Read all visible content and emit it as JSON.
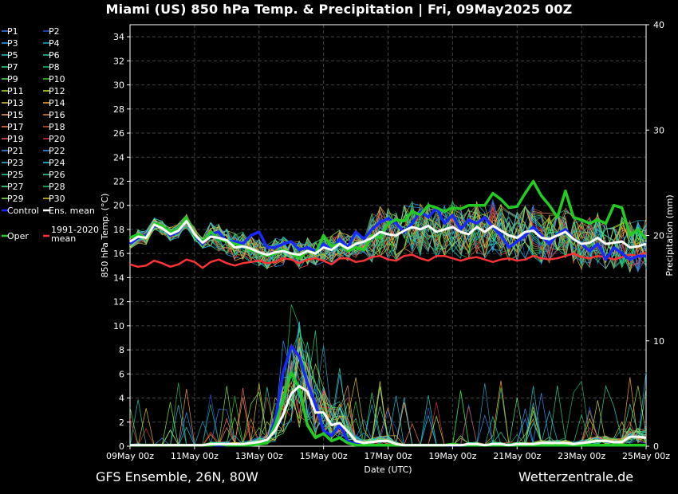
{
  "title": "Miami  (US)  850 hPa Temp. & Precipitation | Fri, 09May2025 00Z",
  "footer": {
    "left": "GFS Ensemble, 26N, 80W",
    "right": "Wetterzentrale.de"
  },
  "chart_data": {
    "type": "line",
    "title": "Miami  (US)  850 hPa Temp. & Precipitation | Fri, 09May2025 00Z",
    "xlabel": "Date (UTC)",
    "ylabel": "850 hPa Temp. (°C)",
    "y2label": "Precipitation (mm)",
    "xlim": [
      0,
      64
    ],
    "ylim": [
      0,
      35
    ],
    "y2lim": [
      0,
      40
    ],
    "x_tick_labels": [
      "09May 00z",
      "11May 00z",
      "13May 00z",
      "15May 00z",
      "17May 00z",
      "19May 00z",
      "21May 00z",
      "23May 00z",
      "25May 00z"
    ],
    "y_ticks": [
      0,
      2,
      4,
      6,
      8,
      10,
      12,
      14,
      16,
      18,
      20,
      22,
      24,
      26,
      28,
      30,
      32,
      34
    ],
    "y2_ticks": [
      0,
      10,
      20,
      30,
      40
    ],
    "grid": true,
    "legend_placement": "left",
    "colors": {
      "background": "#000000",
      "grid": "#444444",
      "oper": "#22cc22",
      "control": "#1a2aff",
      "mean": "#ffffff",
      "climate": "#ff3333"
    },
    "legend": [
      [
        "P1",
        "P2"
      ],
      [
        "P3",
        "P4"
      ],
      [
        "P5",
        "P6"
      ],
      [
        "P7",
        "P8"
      ],
      [
        "P9",
        "P10"
      ],
      [
        "P11",
        "P12"
      ],
      [
        "P13",
        "P14"
      ],
      [
        "P15",
        "P16"
      ],
      [
        "P17",
        "P18"
      ],
      [
        "P19",
        "P20"
      ],
      [
        "P21",
        "P22"
      ],
      [
        "P23",
        "P24"
      ],
      [
        "P25",
        "P26"
      ],
      [
        "P27",
        "P28"
      ],
      [
        "P29",
        "P30"
      ],
      [
        "Control",
        "Ens. mean"
      ],
      [
        "Oper",
        "1991-2020 mean"
      ]
    ],
    "member_colors": [
      "#3d7cff",
      "#2255dd",
      "#33aaff",
      "#22aacc",
      "#22cccc",
      "#22ccaa",
      "#33dd88",
      "#22bb66",
      "#55dd55",
      "#33cc33",
      "#aadd44",
      "#ccdd33",
      "#ddcc33",
      "#ffaa22",
      "#ff9966",
      "#dd8844",
      "#ff7755",
      "#cc5533",
      "#ff5555",
      "#dd3333",
      "#4488ff",
      "#3399ff",
      "#44bbdd",
      "#22ccdd",
      "#22ddaa",
      "#33ddaa",
      "#55ee88",
      "#22cc66",
      "#88ee44",
      "#ddcc22"
    ],
    "series": [
      {
        "name": "Oper",
        "axis": "temp",
        "values": [
          17.3,
          17.6,
          17.3,
          18.5,
          18.3,
          17.8,
          18.0,
          19.0,
          17.5,
          17.0,
          17.8,
          17.2,
          17.0,
          16.8,
          16.6,
          16.3,
          16.1,
          15.8,
          16.0,
          16.3,
          16.0,
          15.6,
          16.2,
          16.0,
          17.5,
          16.6,
          16.8,
          16.2,
          16.5,
          16.3,
          17.5,
          17.3,
          18.5,
          18.8,
          18.7,
          19.5,
          19.2,
          20.0,
          19.8,
          19.5,
          19.8,
          19.7,
          20.0,
          20.0,
          20.0,
          21.0,
          20.5,
          19.8,
          19.9,
          21.0,
          22.0,
          20.8,
          20.0,
          19.0,
          21.2,
          19.0,
          18.8,
          18.5,
          18.8,
          18.5,
          20.0,
          19.8,
          17.5,
          18.0,
          17.2
        ]
      },
      {
        "name": "Control",
        "axis": "temp",
        "values": [
          16.8,
          17.3,
          17.5,
          18.3,
          18.2,
          17.5,
          17.8,
          18.8,
          17.5,
          16.8,
          17.6,
          17.8,
          17.0,
          17.0,
          16.8,
          17.5,
          17.8,
          16.5,
          16.5,
          16.8,
          17.0,
          16.3,
          16.5,
          16.2,
          16.8,
          16.3,
          17.2,
          16.5,
          17.8,
          17.2,
          18.0,
          18.6,
          18.9,
          18.5,
          17.8,
          18.5,
          19.5,
          19.0,
          19.8,
          18.5,
          19.2,
          18.0,
          18.8,
          18.5,
          19.0,
          18.2,
          17.5,
          16.5,
          17.0,
          17.5,
          18.2,
          17.5,
          16.8,
          17.6,
          18.0,
          17.2,
          16.8,
          16.2,
          16.8,
          15.5,
          16.5,
          16.0,
          15.5,
          15.8,
          15.8
        ]
      },
      {
        "name": "Ens. mean",
        "axis": "temp",
        "values": [
          17.0,
          17.4,
          17.3,
          18.4,
          18.1,
          17.6,
          17.9,
          18.7,
          17.6,
          16.9,
          17.4,
          17.3,
          17.1,
          16.5,
          16.6,
          16.4,
          16.1,
          15.9,
          16.1,
          16.2,
          16.0,
          15.9,
          16.2,
          16.0,
          16.5,
          16.3,
          16.8,
          16.4,
          16.8,
          17.0,
          17.3,
          17.8,
          17.6,
          17.5,
          17.9,
          18.2,
          18.0,
          18.3,
          17.8,
          18.0,
          18.2,
          17.8,
          17.6,
          18.2,
          17.8,
          18.3,
          17.9,
          17.5,
          17.3,
          17.8,
          17.9,
          17.3,
          17.2,
          17.5,
          17.8,
          17.2,
          16.8,
          16.9,
          17.3,
          16.8,
          16.9,
          17.0,
          16.5,
          16.6,
          16.8
        ]
      },
      {
        "name": "1991-2020 mean",
        "axis": "temp",
        "values": [
          15.1,
          14.9,
          15.0,
          15.4,
          15.2,
          14.9,
          15.1,
          15.5,
          15.3,
          14.8,
          15.3,
          15.5,
          15.2,
          15.0,
          15.2,
          15.3,
          15.4,
          15.2,
          15.3,
          15.6,
          15.5,
          15.2,
          15.5,
          15.6,
          15.4,
          15.1,
          15.6,
          15.6,
          15.3,
          15.4,
          15.7,
          15.8,
          15.5,
          15.4,
          15.8,
          15.9,
          15.6,
          15.4,
          15.8,
          15.8,
          15.6,
          15.4,
          15.6,
          15.7,
          15.5,
          15.3,
          15.5,
          15.6,
          15.4,
          15.5,
          15.8,
          15.6,
          15.5,
          15.6,
          15.8,
          16.0,
          15.7,
          15.6,
          15.8,
          15.7,
          15.5,
          15.7,
          15.9,
          15.8,
          16.1
        ]
      },
      {
        "name": "Ens. mean precipitation",
        "axis": "precip",
        "values": [
          0.1,
          0.1,
          0.1,
          0.1,
          0.1,
          0.1,
          0.1,
          0.1,
          0.1,
          0.1,
          0.2,
          0.2,
          0.2,
          0.2,
          0.2,
          0.3,
          0.4,
          0.6,
          1.5,
          3.0,
          5.0,
          5.7,
          5.2,
          3.2,
          3.2,
          2.0,
          2.2,
          1.4,
          0.5,
          0.3,
          0.4,
          0.5,
          0.5,
          0.2,
          0.1,
          0.1,
          0.1,
          0.1,
          0.1,
          0.1,
          0.1,
          0.1,
          0.2,
          0.2,
          0.1,
          0.2,
          0.2,
          0.1,
          0.2,
          0.2,
          0.2,
          0.3,
          0.3,
          0.3,
          0.3,
          0.2,
          0.3,
          0.4,
          0.5,
          0.5,
          0.4,
          0.4,
          0.9,
          0.9,
          0.8
        ]
      },
      {
        "name": "Oper precipitation",
        "axis": "precip",
        "values": [
          0.1,
          0.1,
          0.1,
          0.1,
          0.1,
          0.1,
          0.1,
          0.1,
          0.1,
          0.1,
          0.1,
          0.2,
          0.1,
          0.1,
          0.1,
          0.1,
          0.2,
          0.3,
          2.0,
          4.5,
          7.0,
          5.5,
          2.0,
          0.8,
          1.2,
          0.5,
          0.8,
          0.3,
          0.1,
          0.1,
          0.1,
          0.1,
          0.1,
          0.1,
          0.1,
          0.1,
          0.1,
          0.1,
          0.1,
          0.1,
          0.2,
          0.1,
          0.1,
          0.1,
          0.1,
          0.1,
          0.1,
          0.1,
          0.1,
          0.1,
          0.1,
          0.1,
          0.1,
          0.1,
          0.1,
          0.1,
          0.1,
          0.1,
          0.1,
          0.1,
          0.1,
          0.1,
          0.1,
          0.1,
          0.1
        ]
      },
      {
        "name": "Control precipitation",
        "axis": "precip",
        "values": [
          0.1,
          0.1,
          0.1,
          0.1,
          0.1,
          0.1,
          0.1,
          0.1,
          0.1,
          0.1,
          0.1,
          0.1,
          0.1,
          0.1,
          0.1,
          0.2,
          0.2,
          0.4,
          2.5,
          7.0,
          9.5,
          8.5,
          6.0,
          4.0,
          1.5,
          1.0,
          2.0,
          0.5,
          0.2,
          0.1,
          0.1,
          0.1,
          0.1,
          0.1,
          0.1,
          0.1,
          0.1,
          0.1,
          0.1,
          0.1,
          0.1,
          0.1,
          0.1,
          0.1,
          0.1,
          0.1,
          0.1,
          0.1,
          0.1,
          0.1,
          0.1,
          0.1,
          0.1,
          0.1,
          0.1,
          0.1,
          0.1,
          0.1,
          0.1,
          0.1,
          0.1,
          0.1,
          0.1,
          0.1,
          0.1
        ]
      }
    ]
  }
}
